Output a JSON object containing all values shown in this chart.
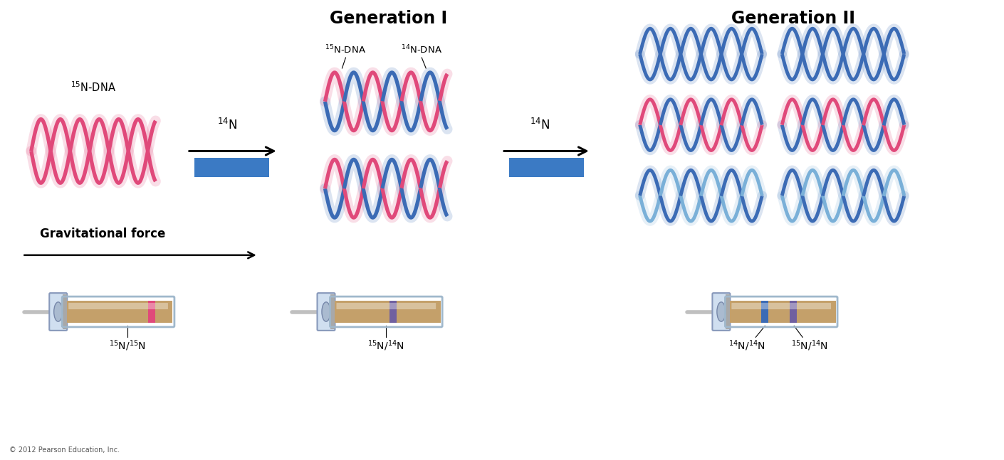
{
  "background_color": "#ffffff",
  "pink_color": "#E0497A",
  "blue_color": "#3B6BB5",
  "light_blue_color": "#7AB0D8",
  "purple_color": "#7060A0",
  "tan_color": "#C4A06A",
  "tan_dark": "#A88050",
  "blue_rect_color": "#3B7AC4",
  "gen1_title": "Generation I",
  "gen2_title": "Generation II",
  "grav_label": "Gravitational force",
  "n14_label": "$^{14}$N",
  "n15_dna_label": "$^{15}$N-DNA",
  "n14_dna_label": "$^{14}$N-DNA",
  "label_15_15": "$^{15}$N/$^{15}$N",
  "label_15_14_mid": "$^{15}$N/$^{14}$N",
  "label_14_14": "$^{14}$N/$^{14}$N",
  "label_15_14_right": "$^{15}$N/$^{14}$N",
  "copyright": "© 2012 Pearson Education, Inc."
}
